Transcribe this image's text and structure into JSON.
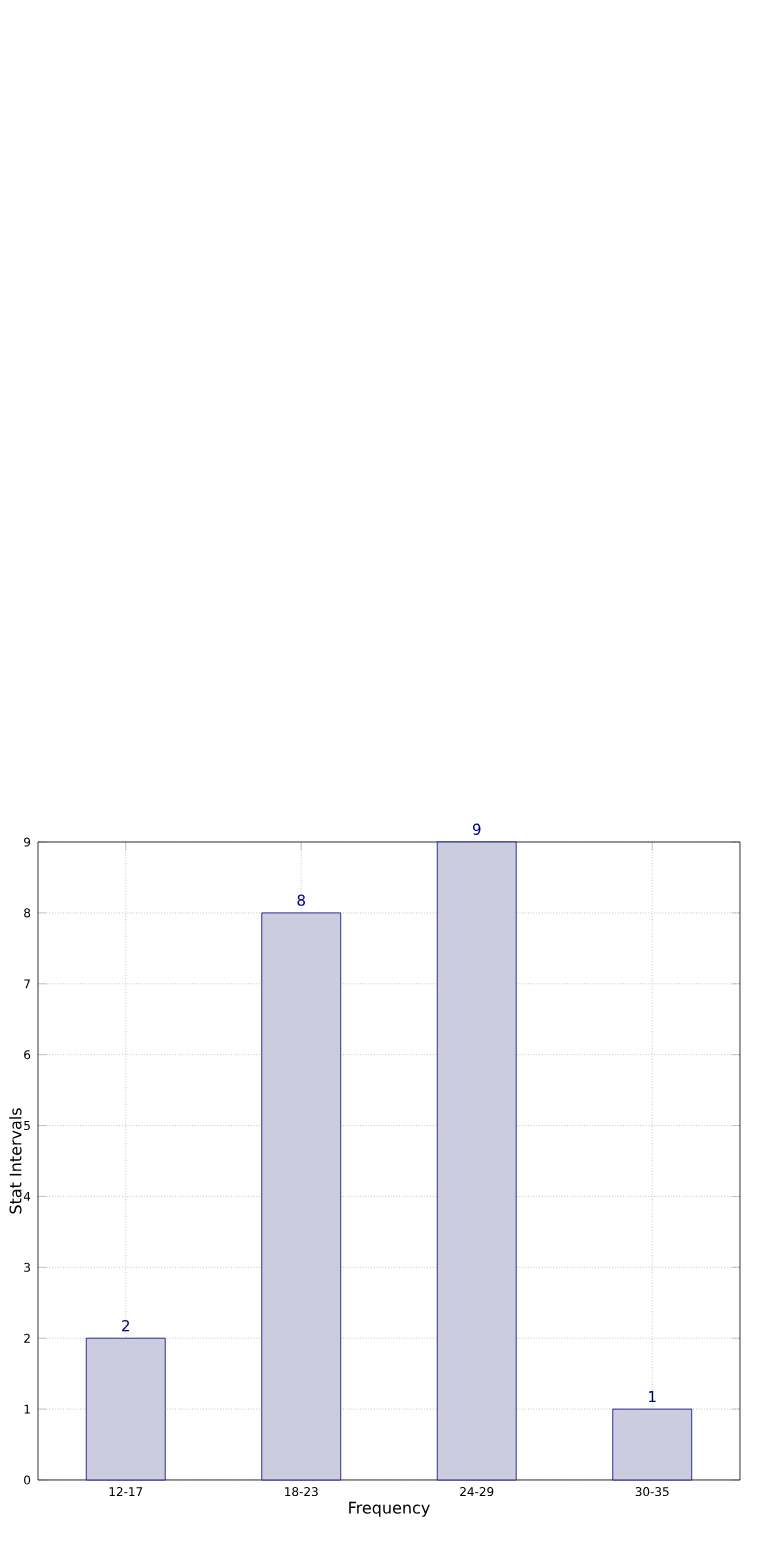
{
  "chart_data": {
    "type": "bar",
    "xlabel": "Frequency",
    "ylabel": "Stat Intervals",
    "categories": [
      "12-17",
      "18-23",
      "24-29",
      "30-35"
    ],
    "values": [
      2,
      8,
      9,
      1
    ],
    "color": "#ccccdf",
    "ylim": [
      0,
      9
    ],
    "yticks": [
      0,
      1,
      2,
      3,
      4,
      5,
      6,
      7,
      8,
      9
    ],
    "grid": true,
    "data_labels": true
  }
}
